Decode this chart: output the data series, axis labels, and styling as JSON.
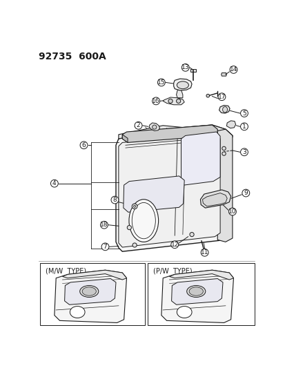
{
  "title": "92735  600A",
  "bg_color": "#ffffff",
  "line_color": "#1a1a1a",
  "title_fontsize": 10,
  "label_fontsize": 7,
  "mw_type_label": "(M/W  TYPE)",
  "pw_type_label": "(P/W  TYPE)"
}
